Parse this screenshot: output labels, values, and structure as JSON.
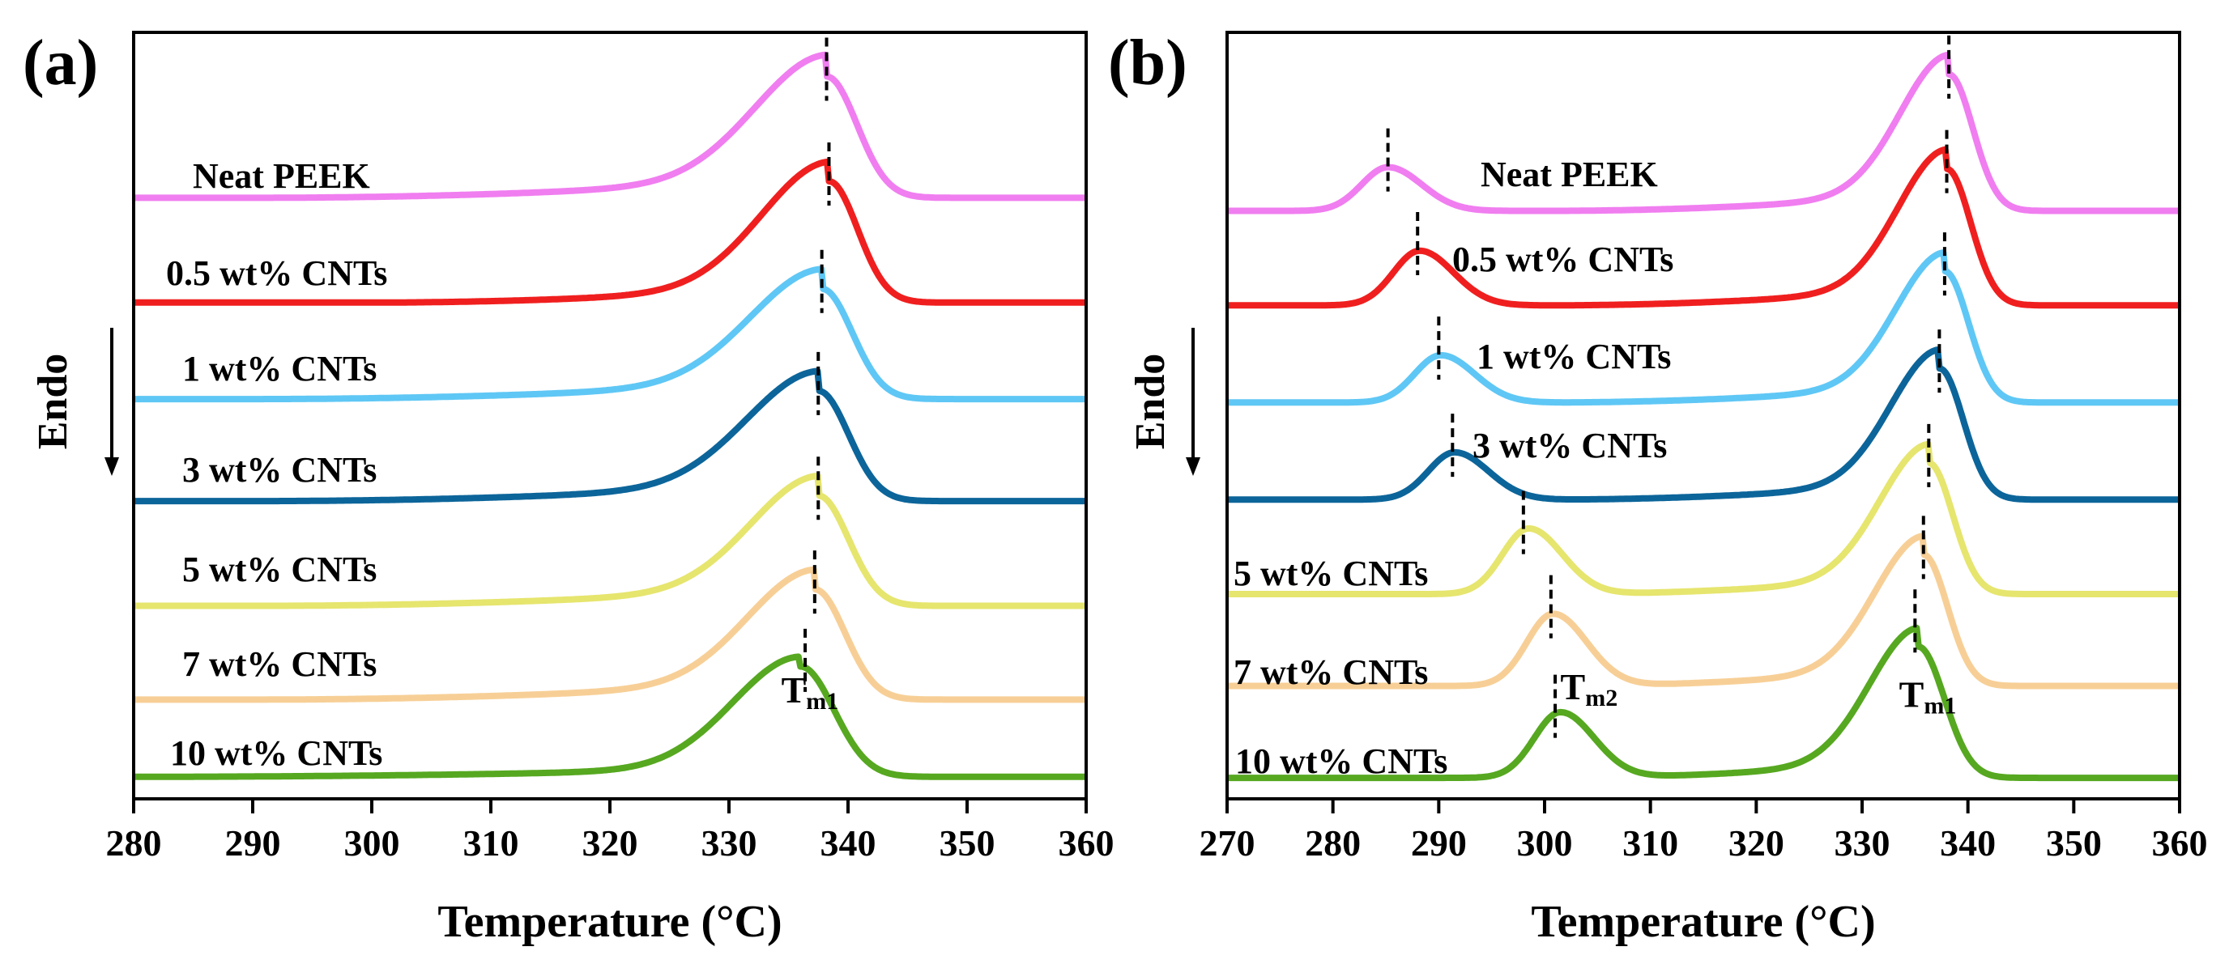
{
  "chart_data": [
    {
      "type": "line",
      "panel_label": "(a)",
      "xlabel": "Temperature (°C)",
      "ylabel": "Endo",
      "xlim": [
        280,
        360
      ],
      "xticks": [
        "280",
        "290",
        "300",
        "310",
        "320",
        "330",
        "340",
        "350",
        "360"
      ],
      "grid": false,
      "y_units": "offset heat flow (arb.), offsets stacked",
      "series": [
        {
          "name": "Neat PEEK",
          "color": "#f07ef0",
          "baseline": 10.6,
          "height": 2.2,
          "peaks": [
            {
              "x": 338.2,
              "w1": 8.5,
              "w2": 3.6,
              "a": 1.0
            }
          ],
          "slope": 1.0,
          "ramp_start": 290,
          "marker_x": 338.2
        },
        {
          "name": "0.5 wt% CNTs",
          "color": "#f01f1f",
          "baseline": 8.7,
          "height": 2.2,
          "peaks": [
            {
              "x": 338.4,
              "w1": 8.0,
              "w2": 3.4,
              "a": 1.0
            }
          ],
          "slope": 0.9,
          "ramp_start": 299.5,
          "marker_x": 338.4
        },
        {
          "name": "1 wt% CNTs",
          "color": "#5fc7f5",
          "baseline": 6.95,
          "height": 2.0,
          "peaks": [
            {
              "x": 337.8,
              "w1": 8.5,
              "w2": 3.6,
              "a": 1.0
            }
          ],
          "slope": 1.0,
          "ramp_start": 290,
          "marker_x": 337.8
        },
        {
          "name": "3 wt% CNTs",
          "color": "#0c659a",
          "baseline": 5.1,
          "height": 2.0,
          "peaks": [
            {
              "x": 337.5,
              "w1": 8.5,
              "w2": 3.6,
              "a": 1.0
            }
          ],
          "slope": 1.0,
          "ramp_start": 290,
          "marker_x": 337.5
        },
        {
          "name": "5 wt% CNTs",
          "color": "#e6e56e",
          "baseline": 3.2,
          "height": 2.0,
          "peaks": [
            {
              "x": 337.5,
              "w1": 8.0,
              "w2": 3.6,
              "a": 1.0
            }
          ],
          "slope": 1.0,
          "ramp_start": 290,
          "marker_x": 337.5
        },
        {
          "name": "7 wt% CNTs",
          "color": "#f7cf96",
          "baseline": 1.5,
          "height": 2.0,
          "peaks": [
            {
              "x": 337.2,
              "w1": 8.0,
              "w2": 3.6,
              "a": 1.0
            }
          ],
          "slope": 1.0,
          "ramp_start": 290,
          "marker_x": 337.2
        },
        {
          "name": "10 wt% CNTs",
          "color": "#56a820",
          "baseline": 0.1,
          "height": 2.0,
          "peaks": [
            {
              "x": 336.0,
              "w1": 8.0,
              "w2": 4.0,
              "a": 1.0
            }
          ],
          "slope": 0.5,
          "ramp_start": 280,
          "marker_x": 336.4
        }
      ],
      "annotations": [
        {
          "text": "T",
          "sub": "m1",
          "x": 336.8,
          "y": 1.45
        }
      ]
    },
    {
      "type": "line",
      "panel_label": "(b)",
      "xlabel": "Temperature (°C)",
      "ylabel": "Endo",
      "xlim": [
        270,
        360
      ],
      "xticks": [
        "270",
        "280",
        "290",
        "300",
        "310",
        "320",
        "330",
        "340",
        "350",
        "360"
      ],
      "grid": false,
      "y_units": "offset heat flow (arb.), offsets stacked",
      "series": [
        {
          "name": "Neat PEEK",
          "color": "#f07ef0",
          "baseline": 10.9,
          "height": 2.6,
          "peaks": [
            {
              "x": 338.2,
              "w1": 6.5,
              "w2": 3.2,
              "a": 1.0
            },
            {
              "x": 285.2,
              "w1": 3.5,
              "w2": 4.5,
              "a": 0.32
            }
          ],
          "slope": 0.8,
          "ramp_start": 300,
          "marker_x": [
            285.2,
            338.2
          ]
        },
        {
          "name": "0.5 wt% CNTs",
          "color": "#f01f1f",
          "baseline": 9.1,
          "height": 2.6,
          "peaks": [
            {
              "x": 338.0,
              "w1": 6.5,
              "w2": 3.2,
              "a": 1.0
            },
            {
              "x": 288.2,
              "w1": 3.5,
              "w2": 4.5,
              "a": 0.4
            }
          ],
          "slope": 0.8,
          "ramp_start": 300,
          "marker_x": [
            288.0,
            338.0
          ]
        },
        {
          "name": "1 wt% CNTs",
          "color": "#5fc7f5",
          "baseline": 7.25,
          "height": 2.5,
          "peaks": [
            {
              "x": 337.8,
              "w1": 6.5,
              "w2": 3.2,
              "a": 1.0
            },
            {
              "x": 290.2,
              "w1": 3.5,
              "w2": 4.5,
              "a": 0.36
            }
          ],
          "slope": 0.8,
          "ramp_start": 300,
          "marker_x": [
            290.0,
            337.8
          ]
        },
        {
          "name": "3 wt% CNTs",
          "color": "#0c659a",
          "baseline": 5.4,
          "height": 2.5,
          "peaks": [
            {
              "x": 337.3,
              "w1": 6.5,
              "w2": 3.2,
              "a": 1.0
            },
            {
              "x": 291.5,
              "w1": 3.5,
              "w2": 4.5,
              "a": 0.36
            }
          ],
          "slope": 0.8,
          "ramp_start": 300,
          "marker_x": [
            291.3,
            337.3
          ]
        },
        {
          "name": "5 wt% CNTs",
          "color": "#e6e56e",
          "baseline": 3.6,
          "height": 2.5,
          "peaks": [
            {
              "x": 336.3,
              "w1": 6.5,
              "w2": 3.2,
              "a": 1.0
            },
            {
              "x": 298.5,
              "w1": 3.5,
              "w2": 4.5,
              "a": 0.5
            }
          ],
          "slope": 0.8,
          "ramp_start": 300,
          "marker_x": [
            298.0,
            336.3
          ]
        },
        {
          "name": "7 wt% CNTs",
          "color": "#f7cf96",
          "baseline": 1.85,
          "height": 2.5,
          "peaks": [
            {
              "x": 335.8,
              "w1": 6.5,
              "w2": 3.2,
              "a": 1.0
            },
            {
              "x": 300.8,
              "w1": 3.5,
              "w2": 4.5,
              "a": 0.55
            }
          ],
          "slope": 0.8,
          "ramp_start": 300,
          "marker_x": [
            300.6,
            335.8
          ]
        },
        {
          "name": "10 wt% CNTs",
          "color": "#56a820",
          "baseline": 0.1,
          "height": 2.5,
          "peaks": [
            {
              "x": 335.3,
              "w1": 6.5,
              "w2": 3.5,
              "a": 1.0
            },
            {
              "x": 301.5,
              "w1": 3.5,
              "w2": 4.5,
              "a": 0.5
            }
          ],
          "slope": 0.8,
          "ramp_start": 300,
          "marker_x": [
            301.0,
            335.0
          ]
        }
      ],
      "annotations": [
        {
          "text": "T",
          "sub": "m2",
          "x": 304.2,
          "y": 1.6
        },
        {
          "text": "T",
          "sub": "m1",
          "x": 336.2,
          "y": 1.45
        }
      ]
    }
  ]
}
